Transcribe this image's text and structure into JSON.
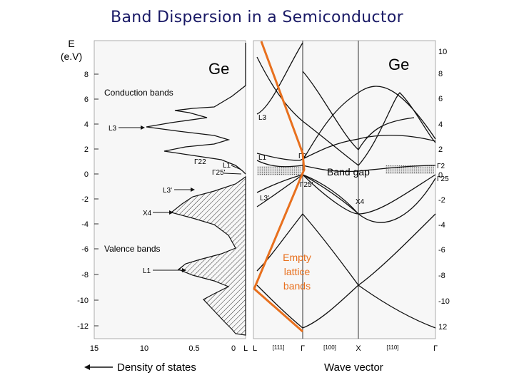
{
  "title": "Band Dispersion in a Semiconductor",
  "energy_axis": {
    "label_line1": "E",
    "label_line2": "(e.V)",
    "left_ticks": [
      "8",
      "6",
      "4",
      "2",
      "0",
      "-2",
      "-4",
      "-6",
      "-8",
      "-10",
      "-12"
    ],
    "right_ticks": [
      "10",
      "8",
      "6",
      "4",
      "2",
      "0",
      "-2",
      "-4",
      "-6",
      "-8",
      "-10",
      "12"
    ]
  },
  "dos_panel": {
    "material": "Ge",
    "conduction_label": "Conduction bands",
    "valence_label": "Valence bands",
    "points": [
      "L3",
      "L1",
      "Γ22",
      "Γ25'",
      "L3'",
      "X4",
      "L1"
    ],
    "x_ticks": [
      "15",
      "10",
      "0.5",
      "0"
    ],
    "corner_label": "L"
  },
  "band_panel": {
    "material": "Ge",
    "gap_label": "Band gap",
    "empty_lattice_label": [
      "Empty",
      "lattice",
      "bands"
    ],
    "k_labels": [
      "L",
      "Γ",
      "X",
      "Γ"
    ],
    "directions": [
      "[111]",
      "[100]",
      "[110]"
    ],
    "symmetry_points": [
      "L3",
      "L1",
      "L3'",
      "Γ2",
      "Γ25'",
      "X4",
      "Γ2",
      "Γ25"
    ]
  },
  "bottom_left_label": "Density of states",
  "bottom_right_label": "Wave vector",
  "colors": {
    "orange": "#e8701e",
    "gap_fill": "#d0d0d0"
  }
}
